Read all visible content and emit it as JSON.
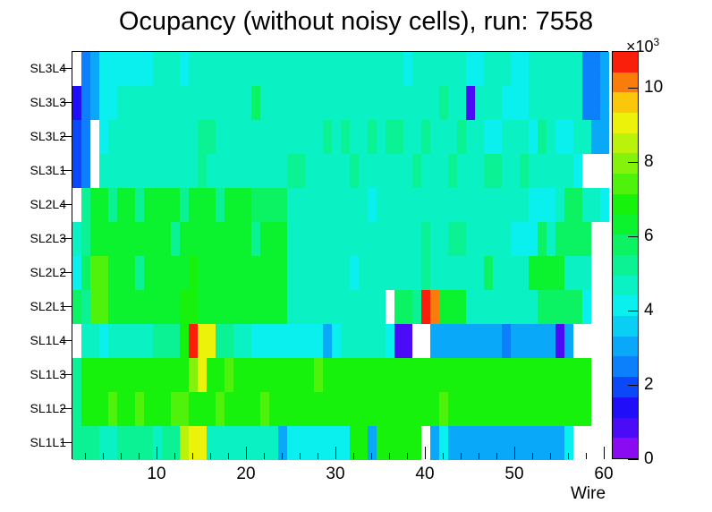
{
  "title": "Ocupancy (without noisy cells), run: 7558",
  "x_axis": {
    "title": "Wire",
    "tick_labels": [
      "10",
      "20",
      "30",
      "40",
      "50",
      "60"
    ],
    "tick_wires": [
      10,
      20,
      30,
      40,
      50,
      60
    ],
    "minor_tick_step": 2
  },
  "colorbar": {
    "exponent_label": "×10",
    "exponent_power": "3",
    "tick_labels": [
      "0",
      "2",
      "4",
      "6",
      "8",
      "10"
    ],
    "tick_values": [
      0,
      2000,
      4000,
      6000,
      8000,
      10000
    ],
    "zmin": 0,
    "zmax": 11000,
    "band_size": 550
  },
  "chart_data": {
    "type": "heatmap",
    "xlabel": "Wire",
    "n_wires": 60,
    "x_range": [
      0.5,
      60.5
    ],
    "note": "cell values are palette band indices 1-20; band i spans z=(i-1)*550 .. i*550 counts; 0 = empty (white)",
    "palette": [
      "#8A0BF2",
      "#4B0BF6",
      "#200EF8",
      "#0B48F9",
      "#0B80FA",
      "#0AA8F8",
      "#0ACFF5",
      "#0AF0EE",
      "#0AF2C4",
      "#0BF295",
      "#0BF263",
      "#0BF22E",
      "#16F20B",
      "#4FF20B",
      "#85F20B",
      "#BAF20B",
      "#EDF20B",
      "#FAC70B",
      "#FA7D0B",
      "#FA1F0A"
    ],
    "row_labels_top_to_bottom": [
      "SL3L4",
      "SL3L3",
      "SL3L2",
      "SL3L1",
      "SL2L4",
      "SL2L3",
      "SL2L2",
      "SL2L1",
      "SL1L4",
      "SL1L3",
      "SL1L2",
      "SL1L1"
    ],
    "rows": {
      "SL3L4": [
        0,
        5,
        6,
        8,
        8,
        8,
        8,
        8,
        8,
        9,
        9,
        9,
        8,
        9,
        9,
        9,
        9,
        9,
        9,
        9,
        9,
        9,
        9,
        9,
        9,
        9,
        9,
        9,
        9,
        9,
        9,
        9,
        9,
        9,
        9,
        9,
        9,
        8,
        9,
        9,
        9,
        9,
        9,
        9,
        8,
        8,
        9,
        9,
        9,
        8,
        8,
        9,
        9,
        9,
        9,
        9,
        9,
        5,
        5,
        6
      ],
      "SL3L3": [
        3,
        5,
        6,
        8,
        8,
        9,
        9,
        9,
        9,
        9,
        9,
        9,
        9,
        9,
        9,
        9,
        9,
        9,
        9,
        9,
        11,
        9,
        9,
        9,
        9,
        9,
        9,
        9,
        9,
        9,
        9,
        9,
        9,
        9,
        9,
        9,
        9,
        9,
        9,
        9,
        9,
        10,
        9,
        9,
        2,
        9,
        9,
        9,
        8,
        8,
        8,
        9,
        9,
        9,
        9,
        9,
        9,
        5,
        5,
        6
      ],
      "SL3L2": [
        4,
        5,
        0,
        8,
        9,
        9,
        9,
        9,
        9,
        9,
        9,
        9,
        9,
        9,
        10,
        10,
        9,
        9,
        9,
        9,
        9,
        9,
        9,
        9,
        9,
        9,
        9,
        9,
        10,
        9,
        10,
        9,
        9,
        10,
        9,
        10,
        10,
        9,
        9,
        10,
        9,
        9,
        9,
        10,
        9,
        9,
        8,
        8,
        9,
        9,
        9,
        8,
        10,
        9,
        8,
        8,
        9,
        9,
        6,
        6
      ],
      "SL3L1": [
        4,
        5,
        0,
        9,
        9,
        9,
        9,
        9,
        9,
        9,
        9,
        9,
        9,
        9,
        10,
        9,
        9,
        9,
        9,
        9,
        9,
        9,
        9,
        9,
        10,
        10,
        9,
        9,
        9,
        9,
        9,
        10,
        9,
        9,
        9,
        9,
        9,
        9,
        10,
        9,
        9,
        9,
        10,
        9,
        9,
        9,
        10,
        10,
        9,
        9,
        10,
        9,
        9,
        9,
        9,
        9,
        8,
        0,
        0,
        0
      ],
      "SL2L4": [
        0,
        10,
        12,
        12,
        10,
        12,
        12,
        10,
        12,
        12,
        12,
        12,
        10,
        12,
        12,
        12,
        10,
        12,
        12,
        12,
        11,
        11,
        11,
        11,
        9,
        9,
        9,
        9,
        9,
        9,
        9,
        9,
        9,
        8,
        9,
        9,
        9,
        9,
        9,
        9,
        9,
        9,
        9,
        9,
        9,
        9,
        9,
        9,
        9,
        9,
        9,
        8,
        8,
        8,
        9,
        11,
        11,
        9,
        9,
        8
      ],
      "SL2L3": [
        9,
        10,
        12,
        12,
        12,
        12,
        12,
        12,
        12,
        12,
        12,
        10,
        12,
        12,
        12,
        12,
        12,
        12,
        12,
        12,
        10,
        12,
        12,
        12,
        9,
        9,
        9,
        9,
        9,
        9,
        9,
        9,
        9,
        9,
        9,
        9,
        9,
        9,
        9,
        10,
        9,
        9,
        10,
        10,
        9,
        9,
        9,
        9,
        9,
        8,
        8,
        8,
        11,
        9,
        11,
        11,
        11,
        11,
        0,
        0
      ],
      "SL2L2": [
        8,
        11,
        14,
        14,
        12,
        12,
        12,
        10,
        12,
        12,
        12,
        12,
        12,
        13,
        12,
        12,
        12,
        12,
        12,
        12,
        12,
        12,
        12,
        12,
        9,
        9,
        9,
        9,
        9,
        9,
        9,
        8,
        9,
        9,
        9,
        9,
        9,
        9,
        9,
        10,
        9,
        9,
        9,
        9,
        9,
        9,
        11,
        9,
        9,
        9,
        9,
        12,
        12,
        12,
        12,
        9,
        9,
        9,
        0,
        0
      ],
      "SL2L1": [
        11,
        10,
        14,
        14,
        12,
        12,
        12,
        12,
        12,
        12,
        12,
        12,
        13,
        13,
        12,
        12,
        12,
        12,
        12,
        12,
        12,
        12,
        12,
        12,
        9,
        9,
        9,
        9,
        9,
        9,
        9,
        9,
        9,
        9,
        9,
        0,
        11,
        11,
        10,
        20,
        19,
        12,
        12,
        12,
        9,
        9,
        9,
        9,
        9,
        9,
        9,
        9,
        11,
        11,
        11,
        11,
        11,
        8,
        0,
        0
      ],
      "SL1L4": [
        0,
        9,
        9,
        8,
        9,
        9,
        9,
        9,
        9,
        10,
        10,
        10,
        13,
        20,
        17,
        17,
        10,
        10,
        9,
        9,
        8,
        8,
        8,
        8,
        8,
        8,
        8,
        8,
        6,
        8,
        9,
        9,
        9,
        9,
        9,
        8,
        2,
        2,
        0,
        0,
        6,
        6,
        6,
        6,
        6,
        6,
        6,
        6,
        5,
        6,
        6,
        6,
        6,
        6,
        2,
        6,
        0,
        0,
        0,
        0
      ],
      "SL1L3": [
        10,
        13,
        13,
        13,
        13,
        13,
        13,
        13,
        13,
        13,
        13,
        13,
        13,
        15,
        17,
        13,
        13,
        14,
        13,
        13,
        13,
        13,
        13,
        13,
        13,
        13,
        13,
        14,
        13,
        13,
        13,
        13,
        13,
        13,
        13,
        13,
        13,
        13,
        13,
        13,
        13,
        13,
        13,
        13,
        13,
        13,
        13,
        13,
        13,
        13,
        13,
        13,
        13,
        13,
        13,
        13,
        13,
        13,
        0,
        0
      ],
      "SL1L2": [
        10,
        13,
        13,
        13,
        14,
        13,
        13,
        14,
        13,
        13,
        13,
        14,
        14,
        13,
        13,
        13,
        14,
        13,
        13,
        13,
        13,
        14,
        13,
        13,
        13,
        13,
        13,
        13,
        13,
        13,
        13,
        13,
        13,
        13,
        13,
        13,
        13,
        13,
        13,
        13,
        13,
        14,
        13,
        13,
        13,
        13,
        13,
        13,
        13,
        13,
        13,
        13,
        13,
        13,
        13,
        13,
        13,
        13,
        0,
        0
      ],
      "SL1L1": [
        10,
        10,
        10,
        9,
        9,
        10,
        10,
        10,
        10,
        9,
        10,
        10,
        16,
        17,
        17,
        9,
        9,
        9,
        9,
        9,
        9,
        9,
        9,
        6,
        8,
        8,
        8,
        8,
        8,
        8,
        8,
        13,
        13,
        6,
        13,
        13,
        13,
        13,
        13,
        0,
        6,
        8,
        6,
        6,
        6,
        6,
        6,
        6,
        6,
        6,
        6,
        6,
        6,
        6,
        6,
        8,
        0,
        0,
        0,
        0
      ]
    }
  }
}
